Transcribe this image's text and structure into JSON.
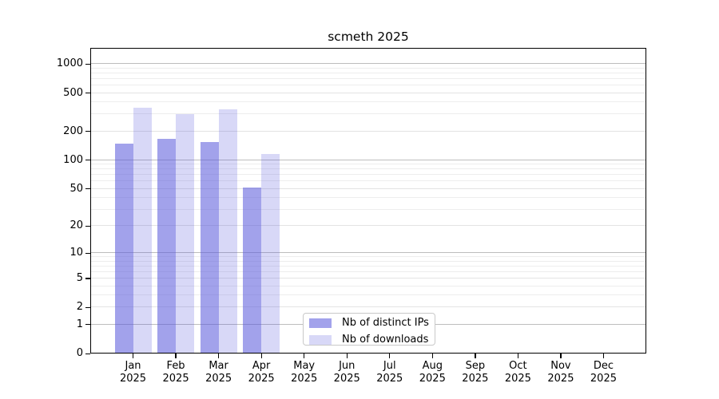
{
  "chart_data": {
    "type": "bar",
    "title": "scmeth 2025",
    "categories": [
      "Jan",
      "Feb",
      "Mar",
      "Apr",
      "May",
      "Jun",
      "Jul",
      "Aug",
      "Sep",
      "Oct",
      "Nov",
      "Dec"
    ],
    "year_label": "2025",
    "series": [
      {
        "key": "distinct-ips",
        "name": "Nb of distinct IPs",
        "color": "rgba(90,90,220,0.56)",
        "values": [
          148,
          168,
          156,
          52,
          null,
          null,
          null,
          null,
          null,
          null,
          null,
          null
        ]
      },
      {
        "key": "downloads",
        "name": "Nb of downloads",
        "color": "rgba(90,90,220,0.24)",
        "values": [
          351,
          304,
          341,
          115,
          null,
          null,
          null,
          null,
          null,
          null,
          null,
          null
        ]
      }
    ],
    "y_scale": "log10(value+1)",
    "y_ticks": [
      0,
      1,
      2,
      5,
      10,
      20,
      50,
      100,
      200,
      500,
      1000
    ],
    "y_minor_ticks": [
      3,
      4,
      6,
      7,
      8,
      9,
      30,
      40,
      60,
      70,
      80,
      90,
      300,
      400,
      600,
      700,
      800,
      900
    ],
    "ylim": [
      0,
      1470
    ],
    "ylim_log_top": 3.168,
    "grid": true,
    "legend_position": "lower-center-inside"
  },
  "colors": {
    "bar_base": "#5a5adc",
    "ips_fill": "rgba(90,90,220,0.56)",
    "downloads_fill": "rgba(90,90,220,0.24)",
    "grid_major": "#bdbdbd",
    "grid_light": "#e3e3e3",
    "grid_minor": "#ededed",
    "axis": "#000000",
    "legend_border": "#c9c9c9",
    "background": "#ffffff"
  }
}
